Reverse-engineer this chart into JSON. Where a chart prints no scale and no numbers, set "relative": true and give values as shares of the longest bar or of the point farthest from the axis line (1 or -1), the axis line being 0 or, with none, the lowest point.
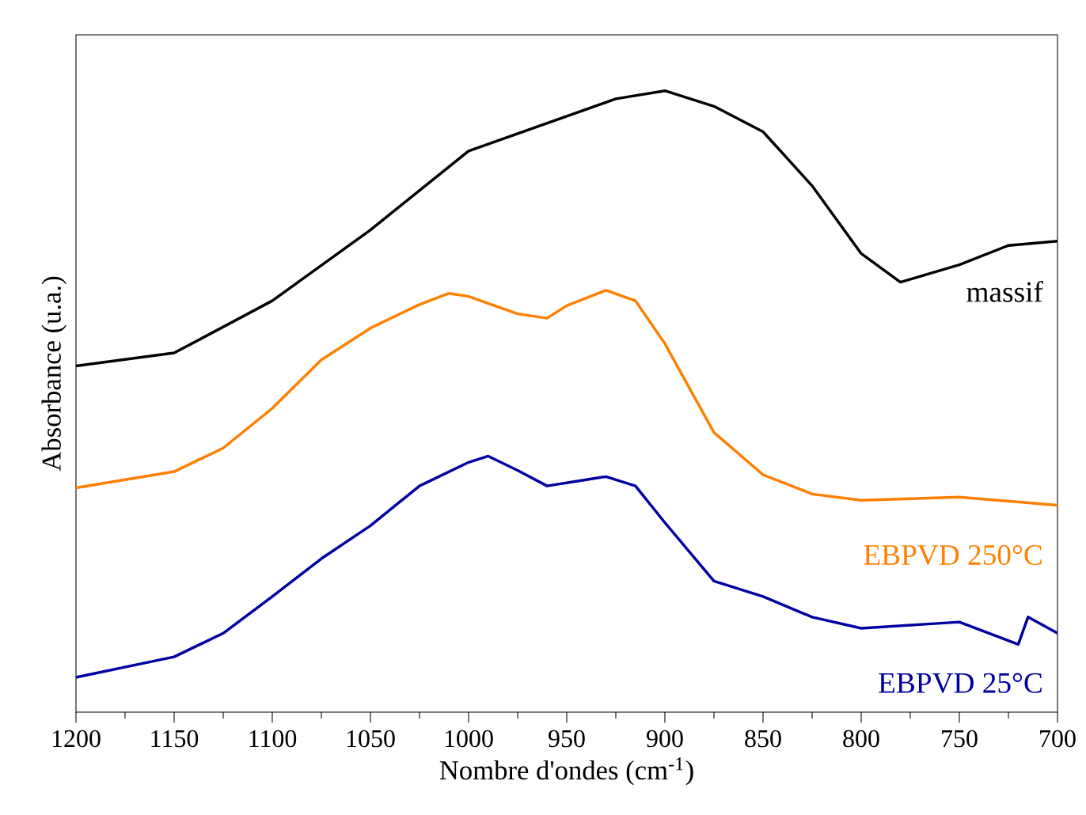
{
  "chart_data": {
    "type": "line",
    "relative": true,
    "xlabel": "Nombre d'ondes (cm$^{-1}$)",
    "ylabel": "Absorbance (u.a.)",
    "xlim": [
      1200,
      700
    ],
    "xticks": [
      1200,
      1150,
      1100,
      1050,
      1000,
      950,
      900,
      850,
      800,
      750,
      700
    ],
    "legend": false,
    "grid": false,
    "series": [
      {
        "name": "massif",
        "color": "#000000",
        "x": [
          1200,
          1150,
          1100,
          1050,
          1000,
          950,
          925,
          900,
          875,
          850,
          825,
          800,
          780,
          750,
          725,
          700
        ],
        "values": [
          0.557,
          0.578,
          0.662,
          0.776,
          0.903,
          0.959,
          0.987,
          1.0,
          0.975,
          0.934,
          0.847,
          0.738,
          0.692,
          0.72,
          0.751,
          0.758
        ]
      },
      {
        "name": "EBPVD 250°C",
        "color": "#ff8000",
        "x": [
          1200,
          1150,
          1125,
          1100,
          1075,
          1050,
          1025,
          1010,
          1000,
          975,
          960,
          950,
          930,
          915,
          900,
          875,
          850,
          825,
          800,
          750,
          700
        ],
        "values": [
          0.361,
          0.387,
          0.425,
          0.489,
          0.567,
          0.618,
          0.656,
          0.674,
          0.669,
          0.641,
          0.634,
          0.654,
          0.679,
          0.662,
          0.593,
          0.45,
          0.382,
          0.351,
          0.341,
          0.346,
          0.333
        ]
      },
      {
        "name": "EBPVD 25°C",
        "color": "#0000a0",
        "x": [
          1200,
          1150,
          1125,
          1100,
          1075,
          1050,
          1025,
          1000,
          990,
          975,
          960,
          940,
          930,
          915,
          900,
          875,
          850,
          825,
          800,
          750,
          720,
          715,
          700
        ],
        "values": [
          0.056,
          0.089,
          0.127,
          0.186,
          0.247,
          0.3,
          0.364,
          0.402,
          0.412,
          0.389,
          0.364,
          0.374,
          0.379,
          0.364,
          0.305,
          0.211,
          0.186,
          0.153,
          0.135,
          0.145,
          0.109,
          0.153,
          0.127
        ]
      }
    ]
  }
}
